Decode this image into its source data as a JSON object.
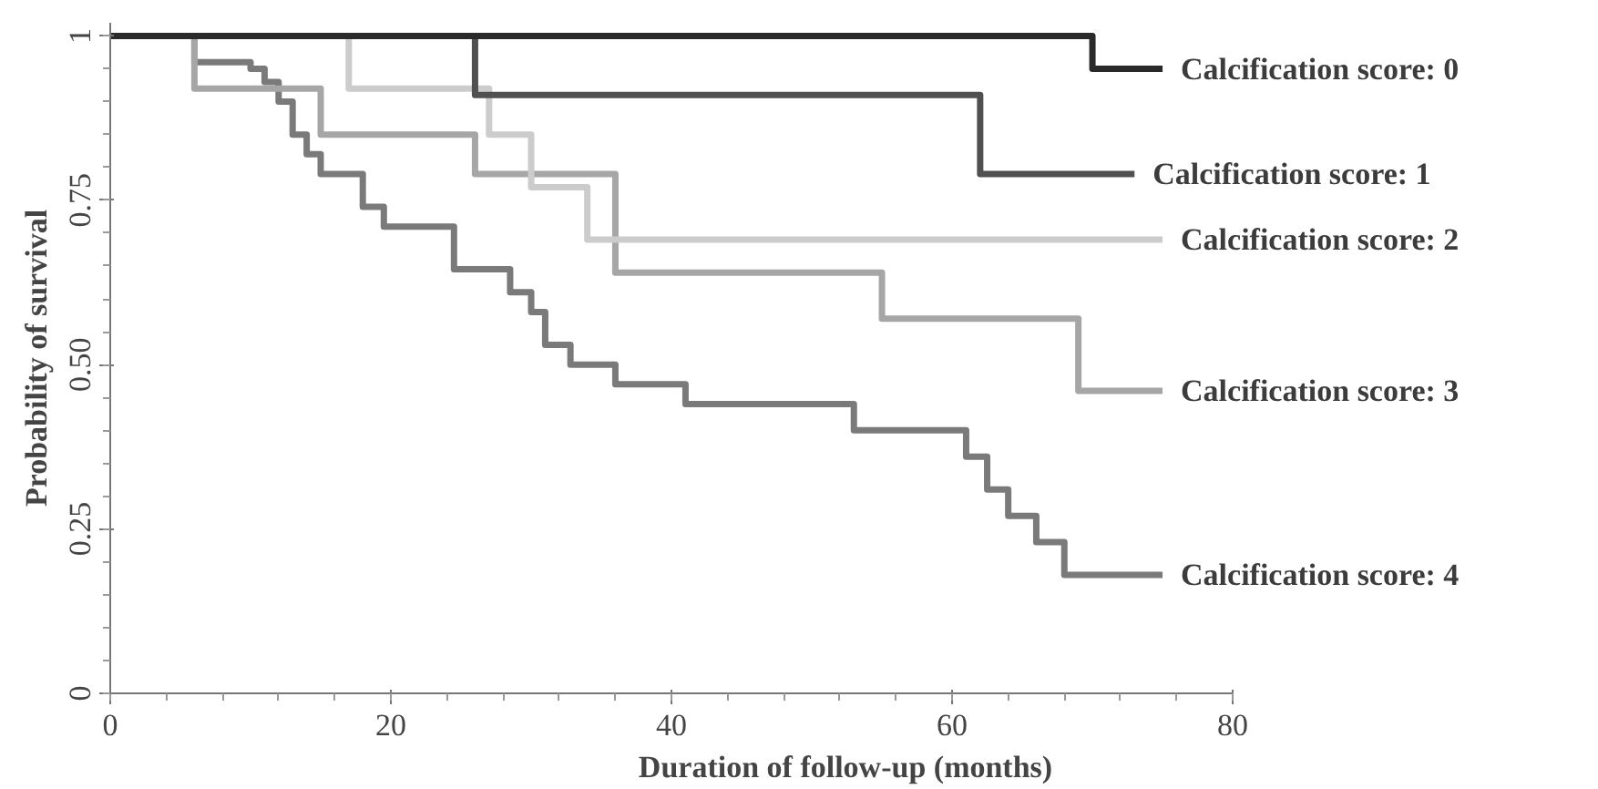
{
  "chart_data": {
    "type": "step",
    "xlabel": "Duration of follow-up (months)",
    "ylabel": "Probability of survival",
    "xlim": [
      0,
      80
    ],
    "ylim": [
      0,
      1.02
    ],
    "xticks": [
      0,
      20,
      40,
      60,
      80
    ],
    "yticks": [
      0,
      {
        "value": 0.25,
        "label": "0.25"
      },
      {
        "value": 0.5,
        "label": "0.50"
      },
      0.75,
      1
    ],
    "grid": false,
    "legend": false,
    "marker": "none",
    "line_style": "solid",
    "series": [
      {
        "name": "Calcification score: 0",
        "color": "#2a2a2a",
        "x": [
          0,
          70,
          75
        ],
        "values": [
          1,
          0.95,
          0.95
        ]
      },
      {
        "name": "Calcification score: 1",
        "color": "#505050",
        "x": [
          0,
          26,
          62,
          73
        ],
        "values": [
          1,
          0.91,
          0.79,
          0.79
        ]
      },
      {
        "name": "Calcification score: 2",
        "color": "#cccccc",
        "x": [
          0,
          17,
          27,
          30,
          34,
          75
        ],
        "values": [
          1,
          0.92,
          0.85,
          0.77,
          0.69,
          0.69
        ]
      },
      {
        "name": "Calcification score: 3",
        "color": "#a6a6a6",
        "x": [
          0,
          6,
          15,
          26,
          36,
          55,
          69,
          75
        ],
        "values": [
          1,
          0.92,
          0.85,
          0.79,
          0.64,
          0.57,
          0.46,
          0.46
        ]
      },
      {
        "name": "Calcification score: 4",
        "color": "#7a7a7a",
        "x": [
          0,
          6,
          10,
          11,
          12,
          13,
          14,
          15,
          18,
          19.5,
          24.5,
          28.5,
          30,
          31,
          32.8,
          36,
          41,
          53,
          61,
          62.5,
          64,
          66,
          68,
          75
        ],
        "values": [
          1,
          0.96,
          0.95,
          0.93,
          0.9,
          0.85,
          0.82,
          0.79,
          0.74,
          0.71,
          0.645,
          0.61,
          0.58,
          0.53,
          0.5,
          0.47,
          0.44,
          0.4,
          0.36,
          0.31,
          0.27,
          0.23,
          0.18,
          0.18
        ]
      }
    ]
  }
}
